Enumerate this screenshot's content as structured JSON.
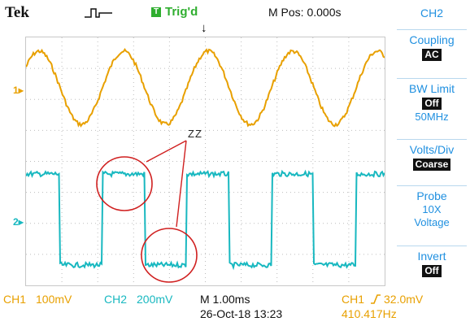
{
  "colors": {
    "ch1": "#e8a000",
    "ch2": "#18b8c0",
    "menu_text": "#2090e0",
    "trigger": "#2fae2f",
    "annotation": "#d02020"
  },
  "header": {
    "brand": "Tek",
    "acquisition_icon": "pulse-icon",
    "trigger_badge": "T",
    "trigger_status": "Trig'd",
    "position": "M Pos: 0.000s"
  },
  "annotation": {
    "text": "ZZ"
  },
  "channel_markers": {
    "ch1": "1",
    "ch2": "2"
  },
  "menu": {
    "title": "CH2",
    "coupling": {
      "label": "Coupling",
      "value": "AC"
    },
    "bw_limit": {
      "label": "BW Limit",
      "value": "Off",
      "sub": "50MHz"
    },
    "volts_div": {
      "label": "Volts/Div",
      "value": "Coarse"
    },
    "probe": {
      "label": "Probe",
      "line2": "10X",
      "line3": "Voltage"
    },
    "invert": {
      "label": "Invert",
      "value": "Off"
    }
  },
  "status": {
    "ch1_label": "CH1",
    "ch1_scale": "100mV",
    "ch2_label": "CH2",
    "ch2_scale": "200mV",
    "timebase": "M 1.00ms",
    "trigger_source": "CH1",
    "trigger_slope_icon": "rising-edge-icon",
    "trigger_level": "32.0mV",
    "date": "26-Oct-18 13:23",
    "frequency": "410.417Hz"
  }
}
